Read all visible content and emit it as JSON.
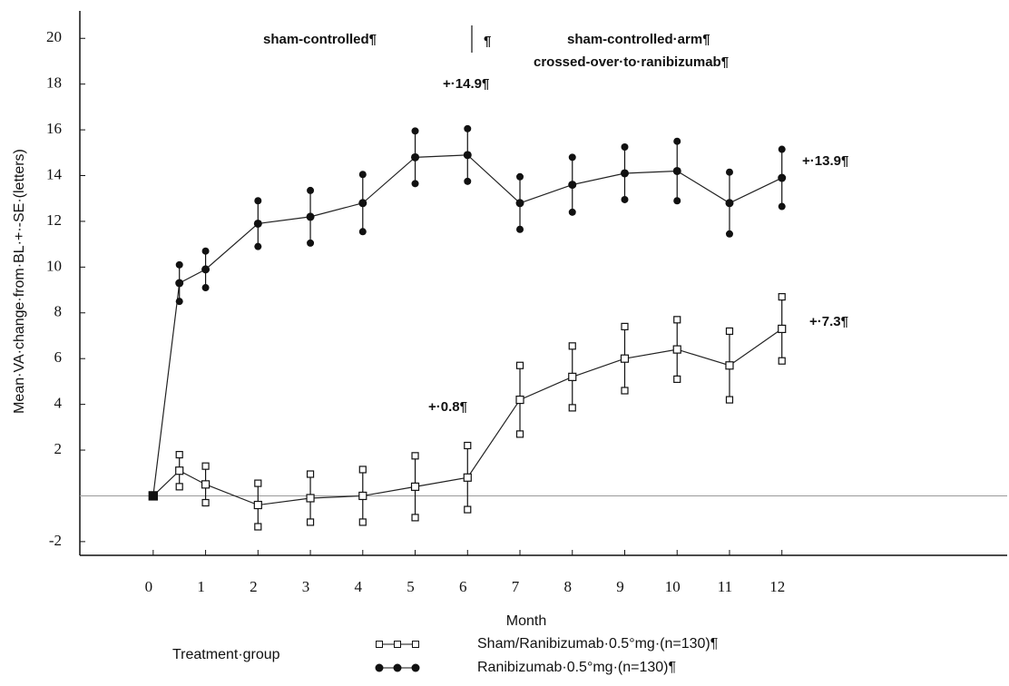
{
  "chart_data": {
    "type": "line",
    "x": [
      0,
      0.5,
      1,
      2,
      3,
      4,
      5,
      6,
      7,
      8,
      9,
      10,
      11,
      12
    ],
    "series": [
      {
        "name": "Sham/Ranibizumab·0.5°mg·(n=130)¶",
        "color": "#222",
        "marker": "square",
        "values": [
          0,
          1.1,
          0.5,
          -0.4,
          -0.1,
          0,
          0.4,
          0.8,
          4.2,
          5.2,
          6.0,
          6.4,
          5.7,
          7.3
        ],
        "errors": [
          null,
          0.7,
          0.8,
          0.95,
          1.05,
          1.15,
          1.35,
          1.4,
          1.5,
          1.35,
          1.4,
          1.3,
          1.5,
          1.4
        ]
      },
      {
        "name": "Ranibizumab·0.5°mg·(n=130)¶",
        "color": "#222",
        "marker": "circle",
        "values": [
          0,
          9.3,
          9.9,
          11.9,
          12.2,
          12.8,
          14.8,
          14.9,
          12.8,
          13.6,
          14.1,
          14.2,
          12.8,
          13.9
        ],
        "errors": [
          null,
          0.8,
          0.8,
          1.0,
          1.15,
          1.25,
          1.15,
          1.15,
          1.15,
          1.2,
          1.15,
          1.3,
          1.35,
          1.25
        ]
      }
    ],
    "xlabel": "Month",
    "ylabel": "Mean·VA·change·from·BL·+·-SE·(letters)",
    "legend_title": "Treatment·group",
    "xlim": [
      -1.4,
      16.3
    ],
    "xticks": [
      0,
      1,
      2,
      3,
      4,
      5,
      6,
      7,
      8,
      9,
      10,
      11,
      12
    ],
    "ylim": [
      -2.6,
      21.2
    ],
    "yticks": [
      -2,
      2,
      4,
      6,
      8,
      10,
      12,
      14,
      16,
      18,
      20
    ],
    "zero_line": 0,
    "annotations": [
      "sham-controlled¶",
      "¶",
      "sham-controlled·arm¶",
      "crossed-over·to·ranibizumab¶",
      "+·14.9¶",
      "+·13.9¶",
      "+·7.3¶",
      "+·0.8¶"
    ]
  }
}
